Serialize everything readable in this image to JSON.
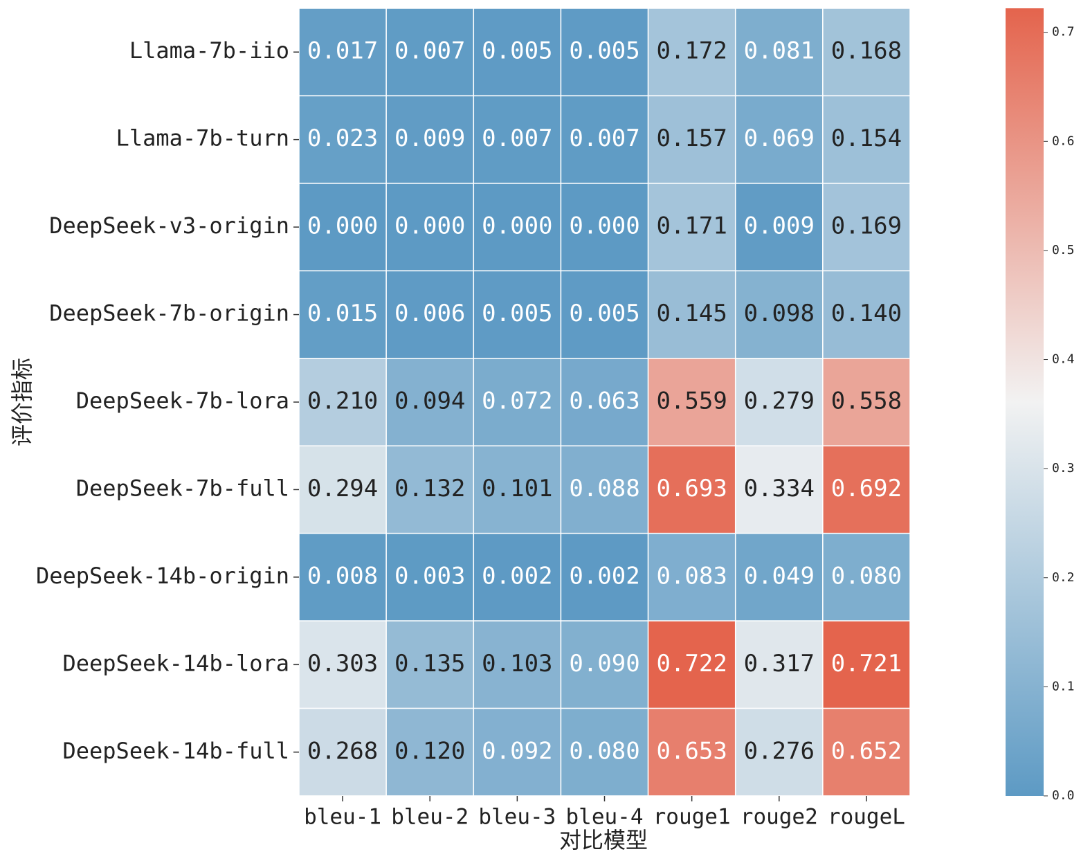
{
  "chart_data": {
    "type": "heatmap",
    "x_label": "对比模型",
    "y_label": "评价指标",
    "columns": [
      "bleu-1",
      "bleu-2",
      "bleu-3",
      "bleu-4",
      "rouge1",
      "rouge2",
      "rougeL"
    ],
    "rows": [
      "Llama-7b-iio",
      "Llama-7b-turn",
      "DeepSeek-v3-origin",
      "DeepSeek-7b-origin",
      "DeepSeek-7b-lora",
      "DeepSeek-7b-full",
      "DeepSeek-14b-origin",
      "DeepSeek-14b-lora",
      "DeepSeek-14b-full"
    ],
    "values": [
      [
        0.017,
        0.007,
        0.005,
        0.005,
        0.172,
        0.081,
        0.168
      ],
      [
        0.023,
        0.009,
        0.007,
        0.007,
        0.157,
        0.069,
        0.154
      ],
      [
        0,
        0,
        0,
        0,
        0.171,
        0.009,
        0.169
      ],
      [
        0.015,
        0.006,
        0.005,
        0.005,
        0.145,
        0.098,
        0.14
      ],
      [
        0.21,
        0.094,
        0.072,
        0.063,
        0.559,
        0.279,
        0.558
      ],
      [
        0.294,
        0.132,
        0.101,
        0.088,
        0.693,
        0.334,
        0.692
      ],
      [
        0.008,
        0.003,
        0.002,
        0.002,
        0.083,
        0.049,
        0.08
      ],
      [
        0.303,
        0.135,
        0.103,
        0.09,
        0.722,
        0.317,
        0.721
      ],
      [
        0.268,
        0.12,
        0.092,
        0.08,
        0.653,
        0.276,
        0.652
      ]
    ],
    "value_labels": [
      [
        "0.017",
        "0.007",
        "0.005",
        "0.005",
        "0.172",
        "0.081",
        "0.168"
      ],
      [
        "0.023",
        "0.009",
        "0.007",
        "0.007",
        "0.157",
        "0.069",
        "0.154"
      ],
      [
        "0.000",
        "0.000",
        "0.000",
        "0.000",
        "0.171",
        "0.009",
        "0.169"
      ],
      [
        "0.015",
        "0.006",
        "0.005",
        "0.005",
        "0.145",
        "0.098",
        "0.140"
      ],
      [
        "0.210",
        "0.094",
        "0.072",
        "0.063",
        "0.559",
        "0.279",
        "0.558"
      ],
      [
        "0.294",
        "0.132",
        "0.101",
        "0.088",
        "0.693",
        "0.334",
        "0.692"
      ],
      [
        "0.008",
        "0.003",
        "0.002",
        "0.002",
        "0.083",
        "0.049",
        "0.080"
      ],
      [
        "0.303",
        "0.135",
        "0.103",
        "0.090",
        "0.722",
        "0.317",
        "0.721"
      ],
      [
        "0.268",
        "0.120",
        "0.092",
        "0.080",
        "0.653",
        "0.276",
        "0.652"
      ]
    ],
    "colormap": [
      "#5d9ac4",
      "#f2f2f2",
      "#e4644d"
    ],
    "clim": [
      0,
      0.722
    ],
    "colorbar_ticks": [
      {
        "value": 0,
        "label": "0.0"
      },
      {
        "value": 0.1,
        "label": "0.1"
      },
      {
        "value": 0.2,
        "label": "0.2"
      },
      {
        "value": 0.3,
        "label": "0.3"
      },
      {
        "value": 0.4,
        "label": "0.4"
      },
      {
        "value": 0.5,
        "label": "0.5"
      },
      {
        "value": 0.6,
        "label": "0.6"
      },
      {
        "value": 0.7,
        "label": "0.7"
      }
    ]
  }
}
